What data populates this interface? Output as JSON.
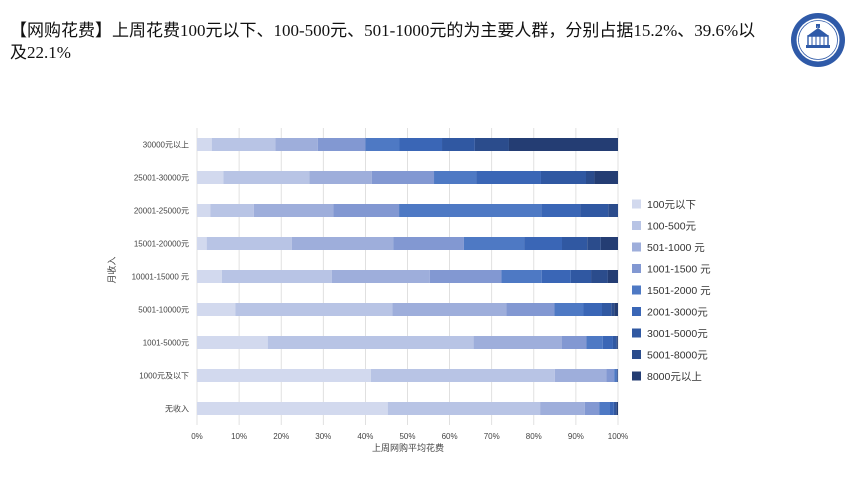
{
  "heading": "【网购花费】上周花费100元以下、100-500元、501-1000元的为主要人群，分别占据15.2%、39.6%以及22.1%",
  "logo": {
    "name": "university-seal",
    "colors": [
      "#2f5aa8",
      "#ffffff"
    ]
  },
  "chart_data": {
    "type": "bar",
    "orientation": "horizontal",
    "stacked": "percent",
    "xlabel": "上周网购平均花费",
    "ylabel": "月收入",
    "xlim": [
      0,
      100
    ],
    "x_ticks": [
      "0%",
      "10%",
      "20%",
      "30%",
      "40%",
      "50%",
      "60%",
      "70%",
      "80%",
      "90%",
      "100%"
    ],
    "grid": "vertical",
    "legend_position": "right",
    "categories": [
      "30000元以上",
      "25001-30000元",
      "20001-25000元",
      "15001-20000元",
      "10001-15000 元",
      "5001-10000元",
      "1001-5000元",
      "1000元及以下",
      "无收入"
    ],
    "series": [
      {
        "name": "100元以下",
        "color": "#d2d9ee",
        "values": [
          3.5,
          6.3,
          3.2,
          2.3,
          5.9,
          9.1,
          16.8,
          41.3,
          45.3
        ]
      },
      {
        "name": "100-500元",
        "color": "#b8c4e5",
        "values": [
          15.1,
          20.4,
          10.3,
          20.2,
          26.1,
          37.3,
          48.9,
          43.7,
          36.2
        ]
      },
      {
        "name": "501-1000 元",
        "color": "#9eaedb",
        "values": [
          10.1,
          14.8,
          18.9,
          24.1,
          23.3,
          27.1,
          21.0,
          12.2,
          10.6
        ]
      },
      {
        "name": "1001-1500 元",
        "color": "#8298d2",
        "values": [
          11.3,
          14.8,
          15.6,
          16.8,
          17.0,
          11.4,
          5.8,
          1.9,
          3.5
        ]
      },
      {
        "name": "1501-2000 元",
        "color": "#4e79c4",
        "values": [
          8.1,
          10.0,
          33.8,
          14.3,
          9.6,
          6.9,
          3.9,
          0.5,
          2.5
        ]
      },
      {
        "name": "2001-3000元",
        "color": "#3a66b6",
        "values": [
          10.1,
          15.4,
          9.2,
          9.0,
          6.9,
          4.4,
          2.4,
          0.2,
          0.9
        ]
      },
      {
        "name": "3001-5000元",
        "color": "#3058a2",
        "values": [
          7.8,
          10.7,
          6.7,
          6.0,
          4.8,
          2.2,
          0.8,
          0.1,
          0.4
        ]
      },
      {
        "name": "5001-8000元",
        "color": "#2b4c8c",
        "values": [
          8.1,
          2.0,
          2.3,
          3.2,
          4.0,
          0.7,
          0.2,
          0.0,
          0.3
        ]
      },
      {
        "name": "8000元以上",
        "color": "#243d73",
        "values": [
          25.9,
          5.6,
          0.0,
          4.1,
          2.4,
          0.9,
          0.2,
          0.1,
          0.3
        ]
      }
    ]
  }
}
